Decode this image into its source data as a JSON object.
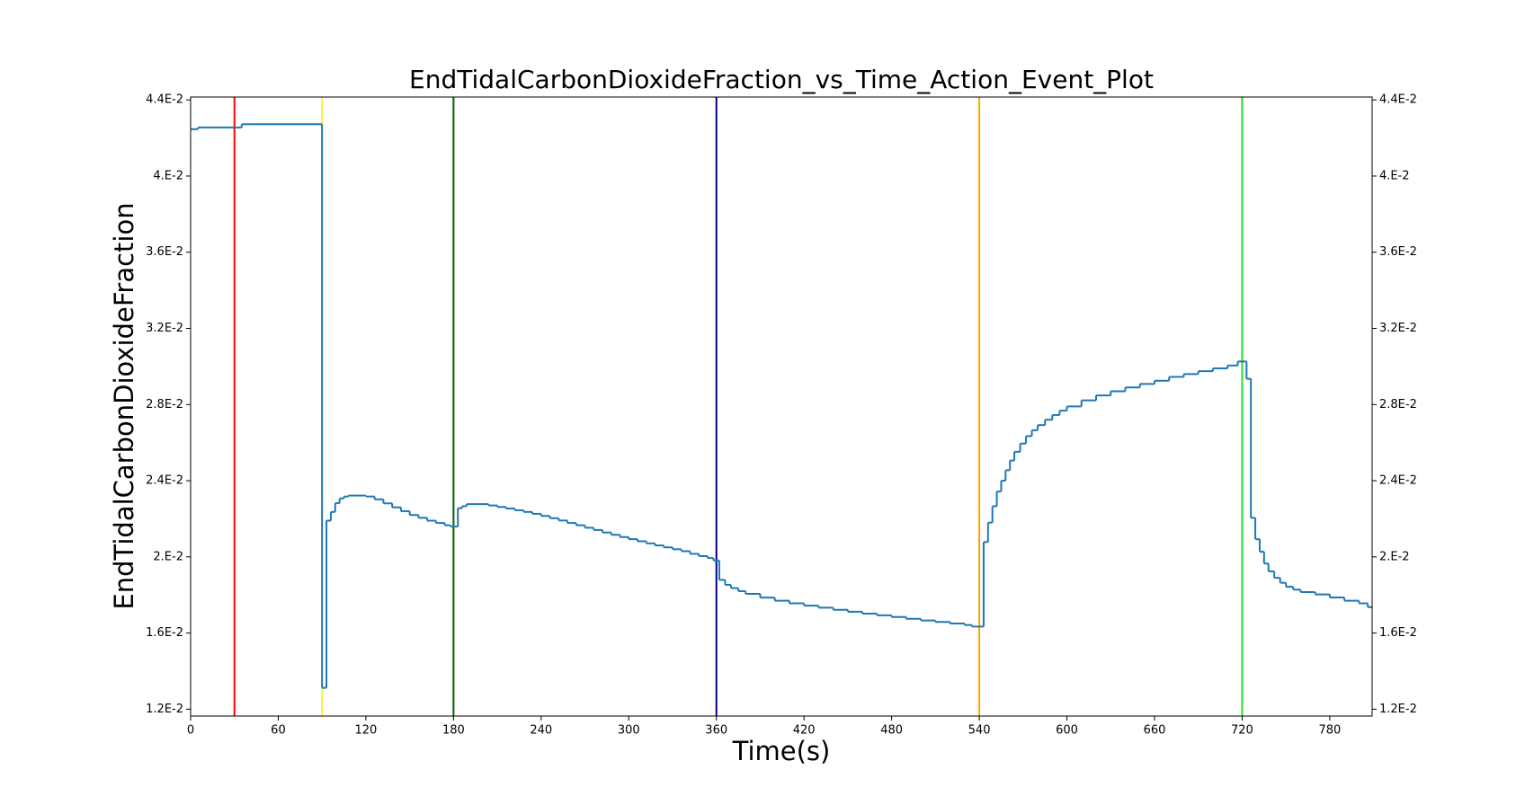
{
  "chart_data": {
    "type": "line",
    "title": "EndTidalCarbonDioxideFraction_vs_Time_Action_Event_Plot",
    "x_label": "Time(s)",
    "y_label": "EndTidalCarbonDioxideFraction",
    "xlim": [
      0,
      809
    ],
    "xticks": [
      0,
      60,
      120,
      180,
      240,
      300,
      360,
      420,
      480,
      540,
      600,
      660,
      720,
      780
    ],
    "ylim": [
      0.01164,
      0.04415
    ],
    "yticks": [
      {
        "value": 0.012,
        "label": "1.2E-2"
      },
      {
        "value": 0.016,
        "label": "1.6E-2"
      },
      {
        "value": 0.02,
        "label": "2.E-2"
      },
      {
        "value": 0.024,
        "label": "2.4E-2"
      },
      {
        "value": 0.028,
        "label": "2.8E-2"
      },
      {
        "value": 0.032,
        "label": "3.2E-2"
      },
      {
        "value": 0.036,
        "label": "3.6E-2"
      },
      {
        "value": 0.04,
        "label": "4.E-2"
      },
      {
        "value": 0.044,
        "label": "4.4E-2"
      }
    ],
    "mirror_y_axis": true,
    "step": true,
    "events": [
      {
        "x": 30,
        "color": "#ff0000"
      },
      {
        "x": 90,
        "color": "#f5f53a"
      },
      {
        "x": 180,
        "color": "#006400"
      },
      {
        "x": 360,
        "color": "#000080"
      },
      {
        "x": 540,
        "color": "#ffa500"
      },
      {
        "x": 720,
        "color": "#22e022"
      }
    ],
    "series": [
      {
        "color": "#1f77b4",
        "x": [
          0,
          5,
          35,
          90,
          93,
          96,
          99,
          102,
          105,
          108,
          114,
          120,
          126,
          132,
          138,
          144,
          150,
          156,
          162,
          168,
          174,
          178,
          183,
          186,
          189,
          198,
          204,
          210,
          216,
          222,
          228,
          234,
          240,
          246,
          252,
          258,
          264,
          270,
          276,
          282,
          288,
          294,
          300,
          306,
          312,
          318,
          324,
          330,
          336,
          342,
          348,
          354,
          358,
          362,
          366,
          370,
          375,
          380,
          390,
          400,
          410,
          420,
          430,
          440,
          450,
          460,
          470,
          480,
          490,
          500,
          510,
          520,
          530,
          535,
          543,
          546,
          549,
          552,
          555,
          558,
          561,
          564,
          568,
          572,
          576,
          580,
          585,
          590,
          595,
          600,
          610,
          620,
          630,
          640,
          650,
          660,
          670,
          680,
          690,
          700,
          710,
          717,
          723,
          726,
          729,
          732,
          735,
          738,
          742,
          746,
          750,
          755,
          760,
          770,
          780,
          790,
          800,
          806,
          809
        ],
        "values": [
          0.04246,
          0.04255,
          0.04272,
          0.01312,
          0.0219,
          0.02236,
          0.02282,
          0.02307,
          0.02317,
          0.02322,
          0.02322,
          0.02317,
          0.02302,
          0.02281,
          0.0226,
          0.0224,
          0.0222,
          0.02205,
          0.0219,
          0.02178,
          0.02166,
          0.02159,
          0.02256,
          0.02266,
          0.02277,
          0.02277,
          0.0227,
          0.02262,
          0.02254,
          0.02245,
          0.02236,
          0.02226,
          0.02215,
          0.02203,
          0.02191,
          0.02178,
          0.02166,
          0.02153,
          0.02141,
          0.02128,
          0.02116,
          0.02104,
          0.02093,
          0.02082,
          0.02071,
          0.0206,
          0.0205,
          0.0204,
          0.0203,
          0.02016,
          0.02004,
          0.01994,
          0.01981,
          0.01879,
          0.01853,
          0.01836,
          0.0182,
          0.01806,
          0.01786,
          0.0177,
          0.01756,
          0.01744,
          0.01733,
          0.01722,
          0.01712,
          0.01702,
          0.01693,
          0.01684,
          0.01675,
          0.01666,
          0.01658,
          0.0165,
          0.01642,
          0.01634,
          0.02078,
          0.0218,
          0.02266,
          0.02343,
          0.024,
          0.02455,
          0.02506,
          0.02552,
          0.02595,
          0.02634,
          0.02665,
          0.02692,
          0.0272,
          0.02745,
          0.02768,
          0.0279,
          0.02822,
          0.02848,
          0.0287,
          0.0289,
          0.02908,
          0.02925,
          0.02945,
          0.0296,
          0.02975,
          0.0299,
          0.03005,
          0.03026,
          0.02935,
          0.02205,
          0.02093,
          0.02027,
          0.01965,
          0.01924,
          0.0189,
          0.01864,
          0.01843,
          0.01828,
          0.01815,
          0.01803,
          0.01787,
          0.0177,
          0.01756,
          0.01736,
          0.01736
        ]
      }
    ]
  }
}
